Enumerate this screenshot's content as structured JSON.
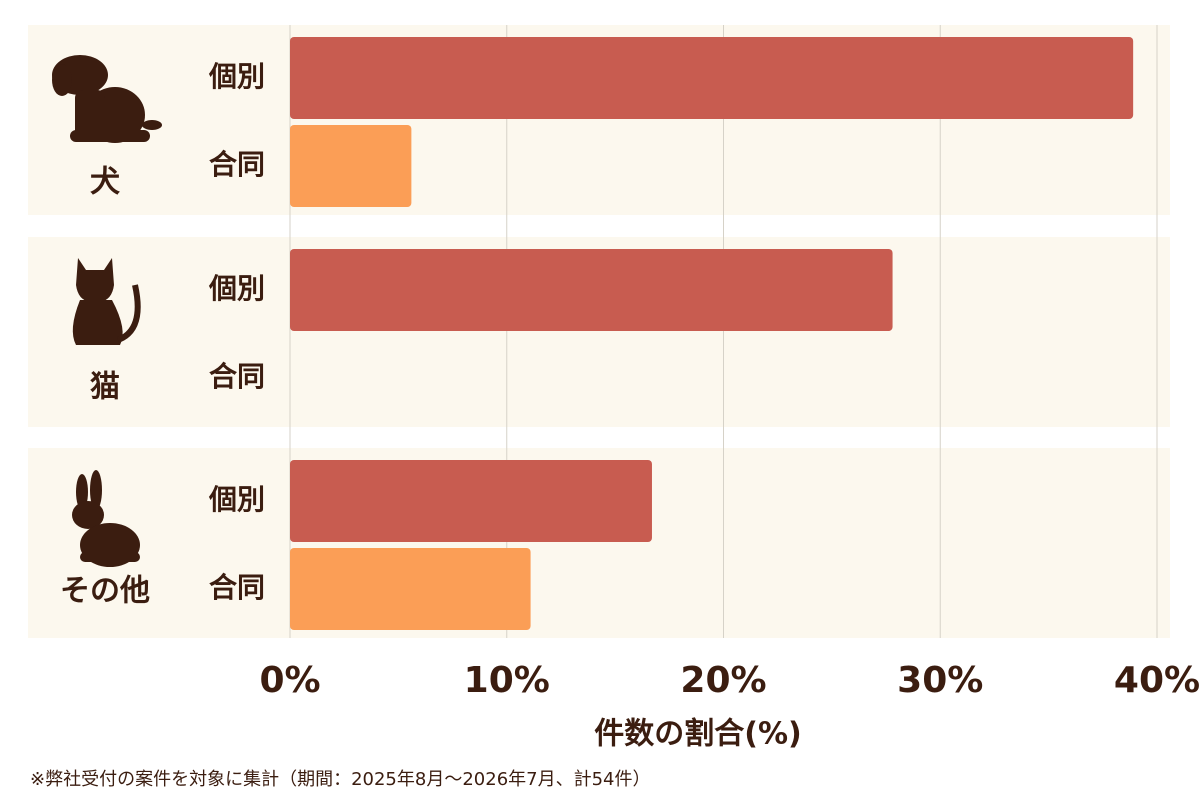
{
  "chart_data": {
    "type": "grouped-hbar",
    "categories": [
      "犬",
      "猫",
      "その他"
    ],
    "series": [
      {
        "name": "個別",
        "color": "#c85c50",
        "values": [
          38.9,
          27.8,
          16.7
        ]
      },
      {
        "name": "合同",
        "color": "#fb9e56",
        "values": [
          5.6,
          0,
          11.1
        ]
      }
    ],
    "xlim": [
      0,
      40
    ],
    "xticks": [
      {
        "value": 0,
        "label": "0%"
      },
      {
        "value": 10,
        "label": "10%"
      },
      {
        "value": 20,
        "label": "20%"
      },
      {
        "value": 30,
        "label": "30%"
      },
      {
        "value": 40,
        "label": "40%"
      }
    ],
    "xlabel": "件数の割合(%)",
    "grid": true,
    "footnote": "※弊社受付の案件を対象に集計（期間：2025年8月～2026年7月、計54件）"
  }
}
